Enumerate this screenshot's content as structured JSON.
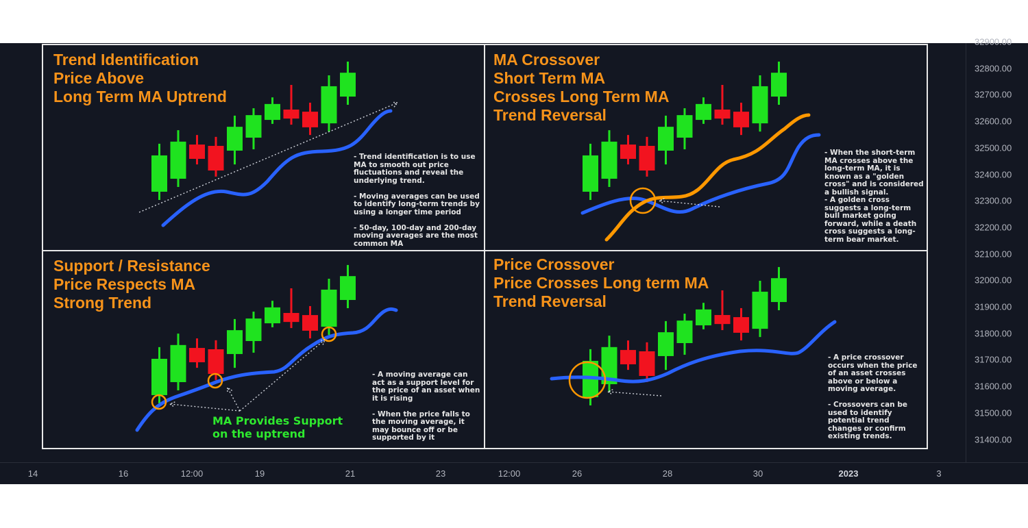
{
  "colors": {
    "background": "#131722",
    "bull": "#1fe31f",
    "bear": "#f2131f",
    "ma_long": "#2962ff",
    "ma_short": "#ff9800",
    "title": "#f7931a",
    "annotation": "#2ee82e"
  },
  "price_axis": [
    "32900.00",
    "32800.00",
    "32700.00",
    "32600.00",
    "32500.00",
    "32400.00",
    "32300.00",
    "32200.00",
    "32100.00",
    "32000.00",
    "31900.00",
    "31800.00",
    "31700.00",
    "31600.00",
    "31500.00",
    "31400.00"
  ],
  "time_axis": [
    {
      "label": "14"
    },
    {
      "label": "16"
    },
    {
      "label": "12:00"
    },
    {
      "label": "19"
    },
    {
      "label": "21"
    },
    {
      "label": "23"
    },
    {
      "label": "12:00"
    },
    {
      "label": "26"
    },
    {
      "label": "28"
    },
    {
      "label": "30"
    },
    {
      "label": "2023",
      "bold": true
    },
    {
      "label": "3"
    }
  ],
  "chart_data": {
    "type": "candlestick",
    "note": "same illustrative candle sequence drawn in each of the four panels",
    "candles": [
      {
        "o": 32335,
        "h": 32516,
        "l": 32304,
        "c": 32472
      },
      {
        "o": 32384,
        "h": 32567,
        "l": 32353,
        "c": 32524
      },
      {
        "o": 32513,
        "h": 32549,
        "l": 32438,
        "c": 32459
      },
      {
        "o": 32508,
        "h": 32542,
        "l": 32392,
        "c": 32415
      },
      {
        "o": 32490,
        "h": 32622,
        "l": 32438,
        "c": 32580
      },
      {
        "o": 32539,
        "h": 32650,
        "l": 32495,
        "c": 32624
      },
      {
        "o": 32606,
        "h": 32691,
        "l": 32591,
        "c": 32666
      },
      {
        "o": 32645,
        "h": 32738,
        "l": 32588,
        "c": 32611
      },
      {
        "o": 32637,
        "h": 32671,
        "l": 32549,
        "c": 32578
      },
      {
        "o": 32593,
        "h": 32774,
        "l": 32562,
        "c": 32733
      },
      {
        "o": 32694,
        "h": 32826,
        "l": 32663,
        "c": 32784
      }
    ]
  },
  "panels": [
    {
      "title": [
        "Trend Identification",
        "Price Above",
        "Long Term MA Uptrend"
      ],
      "note": "- Trend identification is to use\nMA to smooth out price\nfluctuations and reveal the\nunderlying trend.\n\n- Moving averages can be used\nto identify long-term trends by\nusing a longer time period\n\n- 50-day, 100-day and 200-day\nmoving averages are the most\ncommon MA"
    },
    {
      "title": [
        "MA Crossover",
        "Short Term MA",
        "Crosses Long Term MA",
        "Trend Reversal"
      ],
      "note": "- When the short-term\nMA crosses above the\nlong-term MA, it is\nknown as a \"golden\ncross\" and is considered\na bullish signal.\n- A golden cross\nsuggests a long-term\nbull market going\nforward, while a death\ncross suggests a long-\nterm bear market."
    },
    {
      "title": [
        "Support / Resistance",
        "Price Respects MA",
        "Strong Trend"
      ],
      "note": "- A moving average can\nact as a support level for\nthe price of an asset when\nit is rising\n\n- When the price falls to\nthe moving average, it\nmay bounce off or be\nsupported by it",
      "annotation": [
        "MA Provides Support",
        "on the uptrend"
      ]
    },
    {
      "title": [
        "Price Crossover",
        "Price Crosses Long term MA",
        "Trend Reversal"
      ],
      "note": "- A price crossover\noccurs when the price\nof an asset crosses\nabove or below a\nmoving average.\n\n- Crossovers can be\nused to identify\npotential trend\nchanges or confirm\nexisting trends."
    }
  ]
}
